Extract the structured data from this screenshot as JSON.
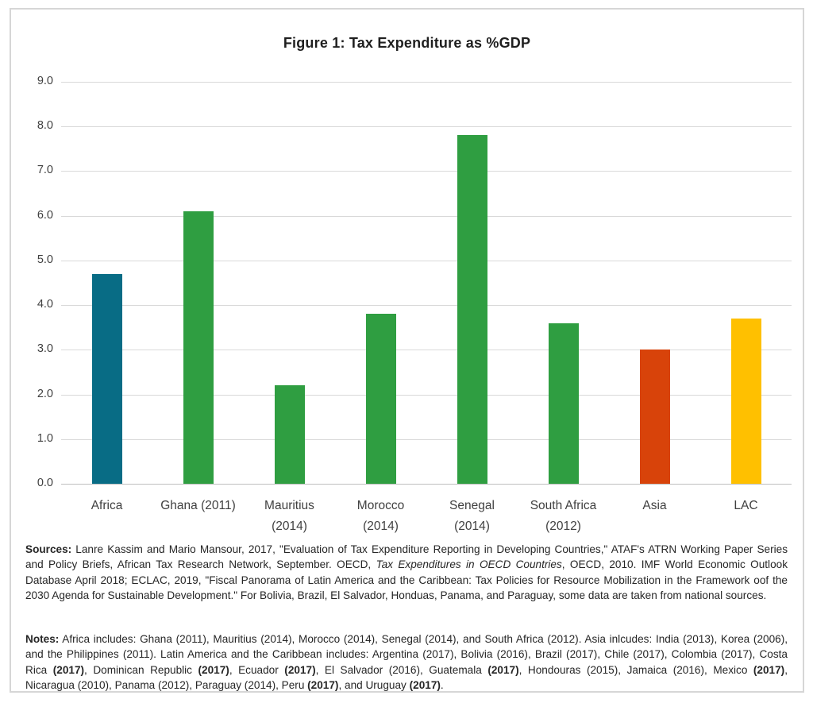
{
  "figure": {
    "title": "Figure 1: Tax Expenditure as %GDP"
  },
  "chart_data": {
    "type": "bar",
    "title": "Figure 1: Tax Expenditure as %GDP",
    "categories": [
      "Africa",
      "Ghana (2011)",
      "Mauritius (2014)",
      "Morocco (2014)",
      "Senegal (2014)",
      "South Africa (2012)",
      "Asia",
      "LAC"
    ],
    "categories_wrapped": [
      [
        "Africa"
      ],
      [
        "Ghana (2011)"
      ],
      [
        "Mauritius",
        "(2014)"
      ],
      [
        "Morocco",
        "(2014)"
      ],
      [
        "Senegal",
        "(2014)"
      ],
      [
        "South Africa",
        "(2012)"
      ],
      [
        "Asia"
      ],
      [
        "LAC"
      ]
    ],
    "values": [
      4.7,
      6.1,
      2.2,
      3.8,
      7.8,
      3.6,
      3.0,
      3.7
    ],
    "bar_colors": [
      "#086c85",
      "#2f9e41",
      "#2f9e41",
      "#2f9e41",
      "#2f9e41",
      "#2f9e41",
      "#d8430a",
      "#ffc000"
    ],
    "xlabel": "",
    "ylabel": "",
    "ylim": [
      0,
      9
    ],
    "ytick_labels": [
      "9.0",
      "8.0",
      "7.0",
      "6.0",
      "5.0",
      "4.0",
      "3.0",
      "2.0",
      "1.0",
      "0.0"
    ],
    "grid": true,
    "legend": false
  },
  "sources": {
    "segments": [
      {
        "t": "Sources:",
        "b": true
      },
      {
        "t": " Lanre Kassim and Mario Mansour, 2017, \"Evaluation of Tax Expenditure Reporting in Developing Countries,\" ATAF's ATRN Working Paper Series and Policy Briefs, African Tax Research Network, September. OECD, "
      },
      {
        "t": "Tax Expenditures in OECD Countries",
        "i": true
      },
      {
        "t": ", OECD, 2010. IMF World Economic Outlook Database April 2018; ECLAC, 2019, \"Fiscal Panorama of Latin America and the Caribbean: Tax Policies for Resource Mobilization in the Framework oof the 2030 Agenda for Sustainable Development.\" For Bolivia, Brazil, El Salvador, Honduas, Panama, and Paraguay, some data are taken from national sources."
      }
    ]
  },
  "notes": {
    "segments": [
      {
        "t": "Notes:",
        "b": true
      },
      {
        "t": " Africa includes: Ghana (2011), Mauritius (2014), Morocco (2014), Senegal (2014), and South Africa (2012). Asia inlcudes: India (2013), Korea (2006), and the Philippines (2011). Latin America and the Caribbean includes: Argentina (2017), Bolivia (2016), Brazil (2017), Chile (2017), Colombia (2017), Costa Rica "
      },
      {
        "t": "(2017)",
        "b": true
      },
      {
        "t": ", Dominican Republic "
      },
      {
        "t": "(2017)",
        "b": true
      },
      {
        "t": ", Ecuador "
      },
      {
        "t": "(2017)",
        "b": true
      },
      {
        "t": ", El Salvador (2016), Guatemala "
      },
      {
        "t": "(2017)",
        "b": true
      },
      {
        "t": ", Hondouras (2015), Jamaica (2016), Mexico "
      },
      {
        "t": "(2017)",
        "b": true
      },
      {
        "t": ", Nicaragua (2010), Panama (2012), Paraguay (2014), Peru "
      },
      {
        "t": "(2017)",
        "b": true
      },
      {
        "t": ", and Uruguay "
      },
      {
        "t": "(2017)",
        "b": true
      },
      {
        "t": "."
      }
    ]
  }
}
